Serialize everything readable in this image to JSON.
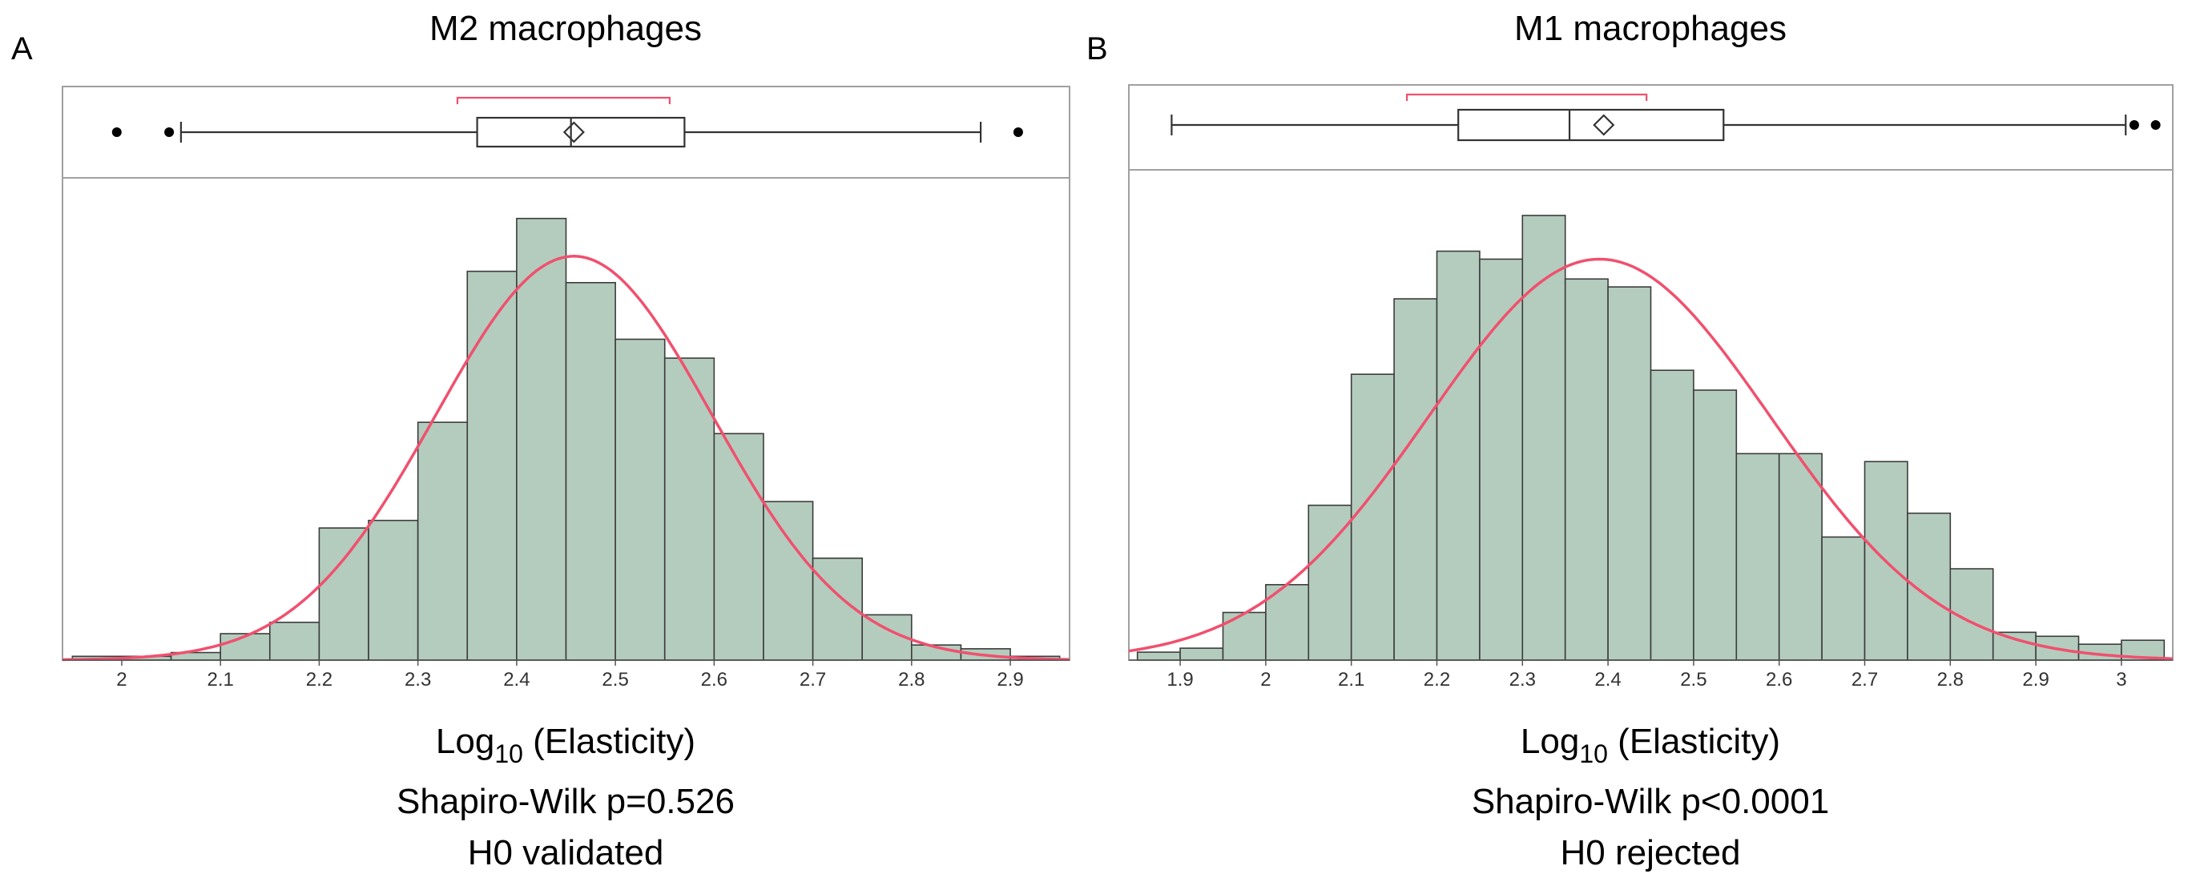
{
  "chart_data": [
    {
      "type": "bar",
      "panel_label": "A",
      "title": "M2 macrophages",
      "xlabel": {
        "base": "Log",
        "subscript": "10",
        "rest": " (Elasticity)"
      },
      "caption_lines": [
        "Shapiro-Wilk p=0.526",
        "H0 validated"
      ],
      "xlim": [
        1.94,
        2.96
      ],
      "xticks": [
        2,
        2.1,
        2.2,
        2.3,
        2.4,
        2.5,
        2.6,
        2.7,
        2.8,
        2.9
      ],
      "xtick_labels": [
        "2",
        "2.1",
        "2.2",
        "2.3",
        "2.4",
        "2.5",
        "2.6",
        "2.7",
        "2.8",
        "2.9"
      ],
      "bin_edges": [
        1.95,
        2.0,
        2.05,
        2.1,
        2.15,
        2.2,
        2.25,
        2.3,
        2.35,
        2.4,
        2.45,
        2.5,
        2.55,
        2.6,
        2.65,
        2.7,
        2.75,
        2.8,
        2.85,
        2.9,
        2.95
      ],
      "counts": [
        1,
        1,
        2,
        7,
        10,
        35,
        37,
        63,
        103,
        117,
        100,
        85,
        80,
        60,
        42,
        27,
        12,
        4,
        3,
        1
      ],
      "ymax": 118,
      "normal_fit": {
        "mean": 2.458,
        "sd": 0.14,
        "peak": 107
      },
      "boxplot": {
        "whisker_low": 2.06,
        "q1": 2.36,
        "median": 2.455,
        "q3": 2.57,
        "whisker_high": 2.87,
        "mean": 2.458,
        "outliers": [
          1.995,
          2.048,
          2.908
        ],
        "ci_bracket": [
          2.34,
          2.555
        ]
      },
      "colors": {
        "bar": "#b4ccbd",
        "fit": "#f0506e"
      }
    },
    {
      "type": "bar",
      "panel_label": "B",
      "title": "M1 macrophages",
      "xlabel": {
        "base": "Log",
        "subscript": "10",
        "rest": " (Elasticity)"
      },
      "caption_lines": [
        "Shapiro-Wilk p<0.0001",
        "H0 rejected"
      ],
      "xlim": [
        1.84,
        3.06
      ],
      "xticks": [
        1.9,
        2,
        2.1,
        2.2,
        2.3,
        2.4,
        2.5,
        2.6,
        2.7,
        2.8,
        2.9,
        3
      ],
      "xtick_labels": [
        "1.9",
        "2",
        "2.1",
        "2.2",
        "2.3",
        "2.4",
        "2.5",
        "2.6",
        "2.7",
        "2.8",
        "2.9",
        "3"
      ],
      "bin_edges": [
        1.85,
        1.9,
        1.95,
        2.0,
        2.05,
        2.1,
        2.15,
        2.2,
        2.25,
        2.3,
        2.35,
        2.4,
        2.45,
        2.5,
        2.55,
        2.6,
        2.65,
        2.7,
        2.75,
        2.8,
        2.85,
        2.9,
        2.95,
        3.0,
        3.05
      ],
      "counts": [
        2,
        3,
        12,
        19,
        39,
        72,
        91,
        103,
        101,
        112,
        96,
        94,
        73,
        68,
        52,
        52,
        31,
        50,
        37,
        23,
        7,
        6,
        4,
        5
      ],
      "ymax": 113,
      "normal_fit": {
        "mean": 2.39,
        "sd": 0.2,
        "peak": 101
      },
      "boxplot": {
        "whisker_low": 1.89,
        "q1": 2.225,
        "median": 2.355,
        "q3": 2.535,
        "whisker_high": 3.005,
        "mean": 2.395,
        "outliers": [
          3.015,
          3.04
        ],
        "ci_bracket": [
          2.165,
          2.445
        ]
      },
      "colors": {
        "bar": "#b4ccbd",
        "fit": "#f0506e"
      }
    }
  ]
}
